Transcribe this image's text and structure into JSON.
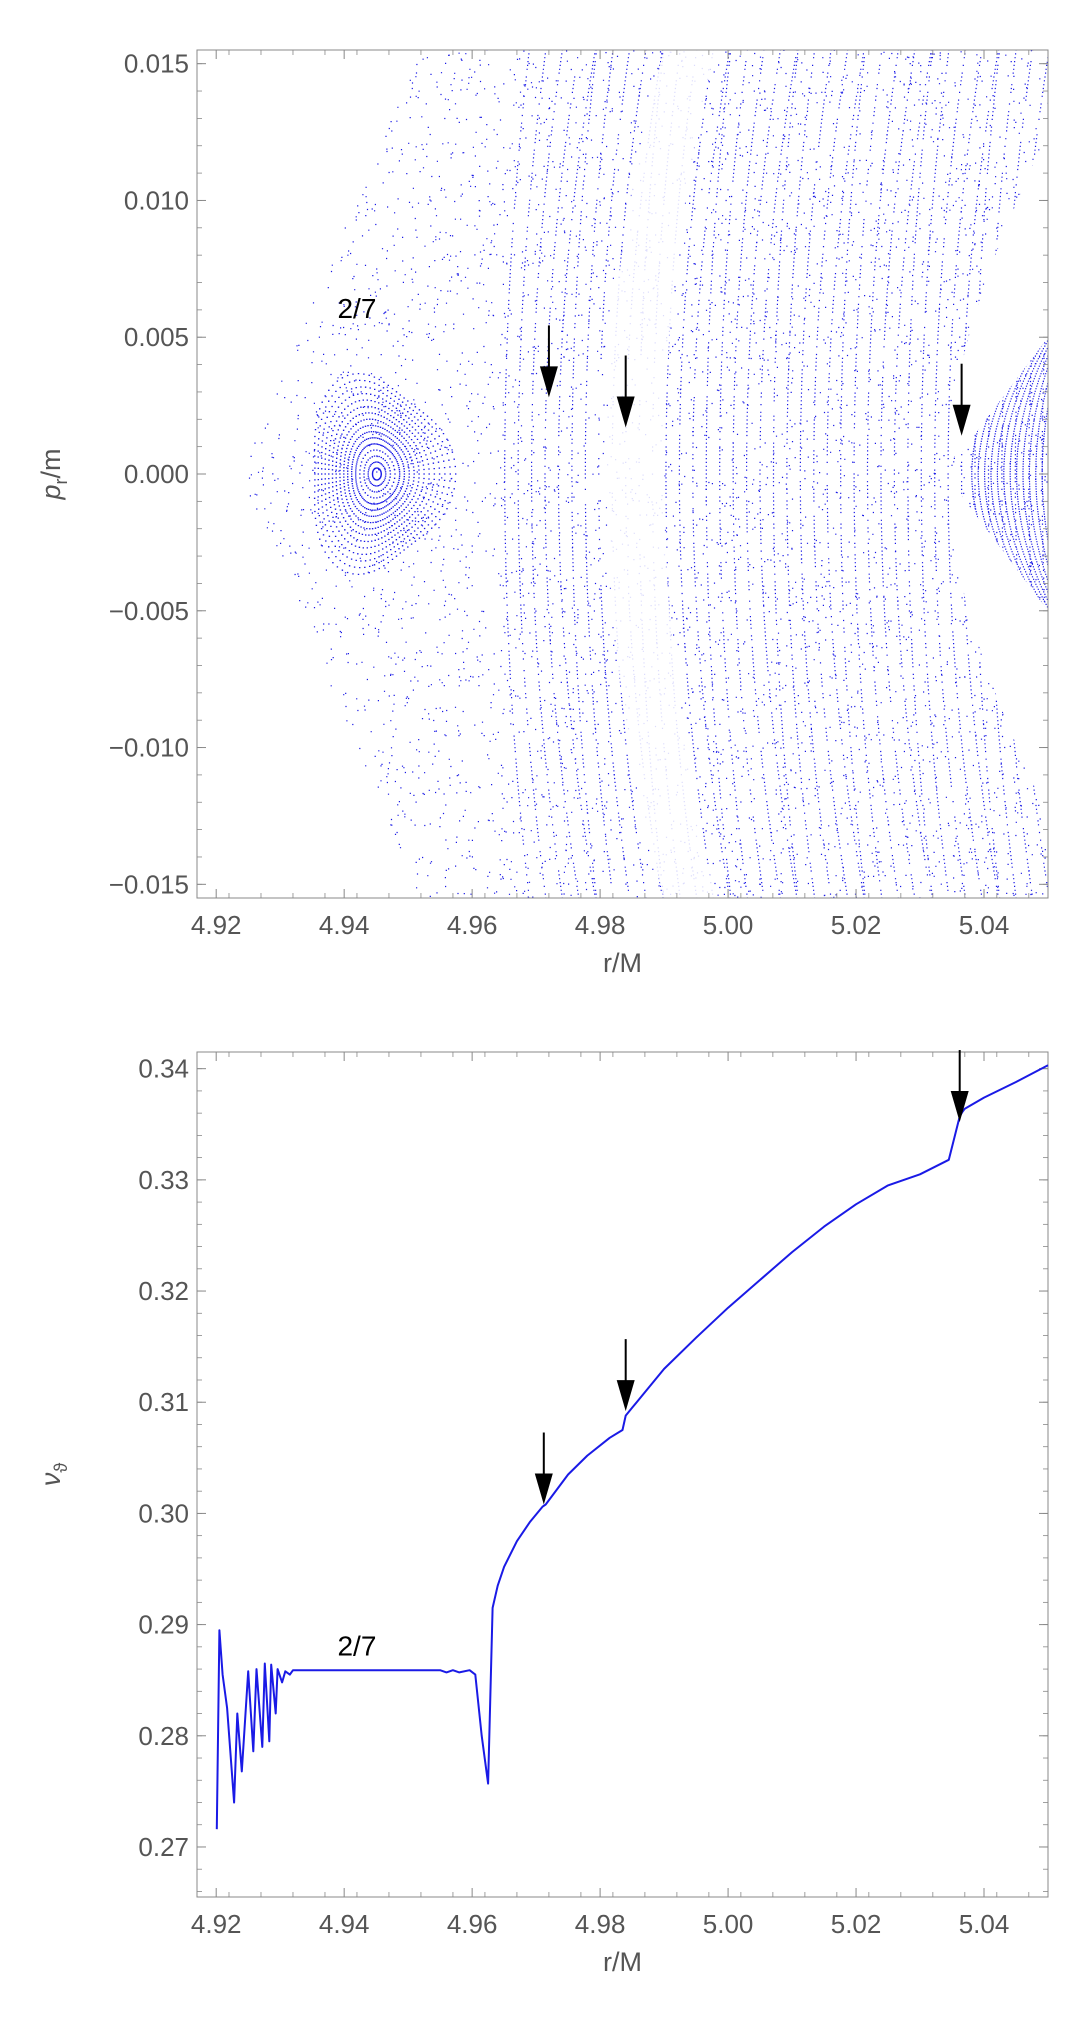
{
  "colors": {
    "series": "#1a1ae6",
    "frame": "#888888",
    "text": "#555555",
    "arrow": "#000000"
  },
  "chart_data": [
    {
      "type": "scatter",
      "xlabel": "r/M",
      "ylabel_main": "p",
      "ylabel_sub": "r",
      "ylabel_rest": "/m",
      "xlim": [
        4.917,
        5.05
      ],
      "ylim": [
        -0.0155,
        0.0155
      ],
      "xticks": [
        "4.92",
        "4.94",
        "4.96",
        "4.98",
        "5.00",
        "5.02",
        "5.04"
      ],
      "xtick_values": [
        4.92,
        4.94,
        4.96,
        4.98,
        5.0,
        5.02,
        5.04
      ],
      "yticks": [
        "0.015",
        "0.010",
        "0.005",
        "0.000",
        "−0.005",
        "−0.010",
        "−0.015"
      ],
      "ytick_values": [
        0.015,
        0.01,
        0.005,
        0.0,
        -0.005,
        -0.01,
        -0.015
      ],
      "island": {
        "center_r": 4.945,
        "center_pr": 0.0,
        "half_width_r": 0.011,
        "half_height_pr": 0.0035
      },
      "annotations": [
        {
          "text": "2/7",
          "x": 4.942,
          "y": 0.0057
        }
      ],
      "arrows": [
        {
          "x": 4.972,
          "y": 0.0028
        },
        {
          "x": 4.984,
          "y": 0.0017
        },
        {
          "x": 5.0365,
          "y": 0.0014
        }
      ]
    },
    {
      "type": "line",
      "xlabel": "r/M",
      "ylabel_main": "ν",
      "ylabel_sub": "ϑ",
      "xlim": [
        4.917,
        5.05
      ],
      "ylim": [
        0.2655,
        0.3415
      ],
      "xticks": [
        "4.92",
        "4.94",
        "4.96",
        "4.98",
        "5.00",
        "5.02",
        "5.04"
      ],
      "xtick_values": [
        4.92,
        4.94,
        4.96,
        4.98,
        5.0,
        5.02,
        5.04
      ],
      "yticks": [
        "0.34",
        "0.33",
        "0.32",
        "0.31",
        "0.30",
        "0.29",
        "0.28",
        "0.27"
      ],
      "ytick_values": [
        0.34,
        0.33,
        0.32,
        0.31,
        0.3,
        0.29,
        0.28,
        0.27
      ],
      "x": [
        4.9201,
        4.9205,
        4.921,
        4.9217,
        4.9228,
        4.9233,
        4.924,
        4.925,
        4.9258,
        4.9263,
        4.9272,
        4.9276,
        4.9283,
        4.9286,
        4.9293,
        4.9296,
        4.9303,
        4.9308,
        4.9315,
        4.932,
        4.94,
        4.95,
        4.955,
        4.956,
        4.957,
        4.958,
        4.9596,
        4.9605,
        4.9615,
        4.9625,
        4.9632,
        4.964,
        4.965,
        4.967,
        4.969,
        4.971,
        4.9715,
        4.975,
        4.978,
        4.9815,
        4.9835,
        4.984,
        4.985,
        4.99,
        4.995,
        5.0,
        5.005,
        5.01,
        5.015,
        5.02,
        5.025,
        5.03,
        5.0345,
        5.0362,
        5.0366,
        5.037,
        5.04,
        5.045,
        5.05
      ],
      "y": [
        0.2716,
        0.2895,
        0.2855,
        0.2825,
        0.274,
        0.282,
        0.2768,
        0.2858,
        0.2786,
        0.286,
        0.279,
        0.2865,
        0.2795,
        0.2864,
        0.282,
        0.286,
        0.2848,
        0.2858,
        0.2855,
        0.2859,
        0.2859,
        0.2859,
        0.2859,
        0.2857,
        0.2859,
        0.2857,
        0.2859,
        0.2855,
        0.28,
        0.2757,
        0.2915,
        0.2935,
        0.2952,
        0.2975,
        0.2992,
        0.3006,
        0.3008,
        0.3035,
        0.3052,
        0.3068,
        0.3075,
        0.3088,
        0.3095,
        0.313,
        0.3158,
        0.3185,
        0.321,
        0.3235,
        0.3258,
        0.3278,
        0.3295,
        0.3305,
        0.3318,
        0.3357,
        0.3361,
        0.3364,
        0.3374,
        0.3388,
        0.3403
      ],
      "annotations": [
        {
          "text": "2/7",
          "x": 4.942,
          "y": 0.2872
        }
      ],
      "arrows": [
        {
          "x": 4.9712,
          "y": 0.3008
        },
        {
          "x": 4.984,
          "y": 0.3092
        },
        {
          "x": 5.0362,
          "y": 0.3352
        }
      ]
    }
  ]
}
